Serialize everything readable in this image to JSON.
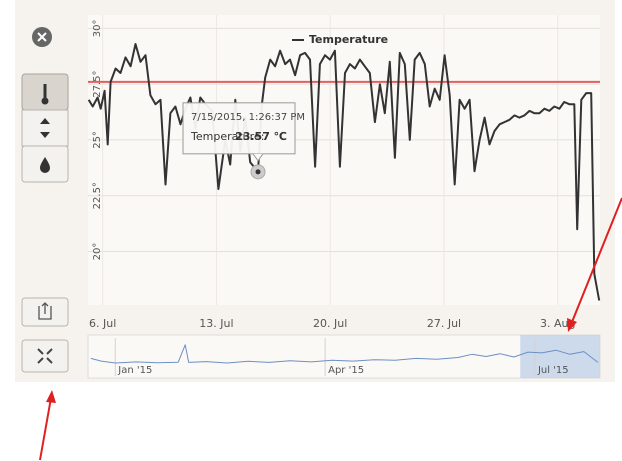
{
  "chart_data": [
    {
      "type": "line",
      "legend": true,
      "grid": true,
      "x": [
        5.14,
        5.39,
        5.69,
        5.88,
        6.12,
        6.31,
        6.49,
        6.8,
        7.1,
        7.41,
        7.72,
        8.02,
        8.33,
        8.64,
        8.94,
        9.25,
        9.56,
        9.87,
        10.17,
        10.48,
        10.79,
        11.09,
        11.4,
        11.71,
        12.01,
        12.32,
        12.75,
        13.12,
        13.55,
        13.85,
        14.16,
        14.47,
        14.77,
        15.08,
        15.56,
        15.8,
        16.0,
        16.31,
        16.61,
        16.92,
        17.23,
        17.53,
        17.84,
        18.15,
        18.45,
        18.76,
        19.07,
        19.37,
        19.68,
        19.99,
        20.29,
        20.6,
        20.91,
        21.21,
        21.52,
        21.83,
        22.13,
        22.44,
        22.75,
        23.06,
        23.36,
        23.67,
        23.98,
        24.28,
        24.59,
        24.9,
        25.2,
        25.51,
        25.82,
        26.12,
        26.43,
        26.74,
        27.04,
        27.35,
        27.66,
        27.96,
        28.27,
        28.58,
        28.88,
        29.19,
        29.5,
        29.8,
        30.11,
        30.42,
        30.72,
        31.03,
        31.34,
        31.64,
        31.95,
        32.26,
        32.56,
        32.87,
        33.18,
        33.48,
        33.79,
        34.1,
        34.4,
        34.71,
        35.02,
        35.2,
        35.45,
        35.75,
        36.06,
        36.25,
        36.55
      ],
      "series": [
        {
          "name": "Temperature",
          "color": "#333333",
          "values": [
            26.8,
            26.5,
            26.9,
            26.4,
            27.2,
            24.8,
            27.6,
            28.2,
            28.0,
            28.7,
            28.3,
            29.3,
            28.5,
            28.8,
            27.0,
            26.6,
            26.8,
            23.0,
            26.2,
            26.5,
            25.7,
            26.4,
            26.9,
            25.5,
            26.9,
            26.6,
            26.3,
            22.8,
            25.0,
            23.9,
            26.8,
            24.5,
            26.0,
            24.0,
            23.57,
            26.6,
            27.8,
            28.6,
            28.3,
            29.0,
            28.4,
            28.6,
            27.9,
            28.8,
            28.9,
            28.6,
            23.8,
            28.4,
            28.8,
            28.6,
            29.0,
            23.8,
            28.0,
            28.4,
            28.2,
            28.6,
            28.3,
            28.0,
            25.8,
            27.5,
            26.2,
            28.5,
            24.2,
            28.9,
            28.4,
            25.0,
            28.6,
            28.9,
            28.4,
            26.5,
            27.3,
            26.8,
            28.8,
            27.0,
            23.0,
            26.8,
            26.4,
            26.8,
            23.6,
            25.0,
            26.0,
            24.8,
            25.4,
            25.7,
            25.8,
            25.9,
            26.1,
            26.0,
            26.1,
            26.3,
            26.2,
            26.2,
            26.4,
            26.3,
            26.5,
            26.4,
            26.7,
            26.6,
            26.6,
            21.0,
            26.8,
            27.1,
            27.1,
            19.0,
            17.8
          ]
        }
      ],
      "xlim": [
        5.1,
        36.6
      ],
      "xticks": [
        {
          "value": 6,
          "label": "6. Jul"
        },
        {
          "value": 13,
          "label": "13. Jul"
        },
        {
          "value": 20,
          "label": "20. Jul"
        },
        {
          "value": 27,
          "label": "27. Jul"
        },
        {
          "value": 34,
          "label": "3. Aug"
        }
      ],
      "ylim": [
        17.6,
        30.6
      ],
      "yticks": [
        {
          "value": 20,
          "label": "20°"
        },
        {
          "value": 22.5,
          "label": "22.5°"
        },
        {
          "value": 25,
          "label": "25°"
        },
        {
          "value": 27.5,
          "label": "27.5°"
        },
        {
          "value": 30,
          "label": "30°"
        }
      ],
      "plot_lines": [
        {
          "value": 27.6,
          "color": "#e06060"
        }
      ],
      "tooltip": {
        "title": "7/15/2015, 1:26:37 PM",
        "label": "Temperature:",
        "x": 15.56,
        "value": 23.57,
        "value_label": "23.57 ℃"
      }
    },
    {
      "type": "line",
      "color": "#6d8fc4",
      "x": [
        0.65,
        0.8,
        1.0,
        1.3,
        1.6,
        1.9,
        2.0,
        2.05,
        2.3,
        2.6,
        2.9,
        3.2,
        3.5,
        3.8,
        4.1,
        4.4,
        4.7,
        5.0,
        5.3,
        5.6,
        5.9,
        6.1,
        6.3,
        6.5,
        6.7,
        6.9,
        7.1,
        7.3,
        7.5,
        7.7,
        7.9
      ],
      "values": [
        24.5,
        23.5,
        22.8,
        23.2,
        22.9,
        23.1,
        29.5,
        23.0,
        23.3,
        22.8,
        23.4,
        23.0,
        23.6,
        23.2,
        23.8,
        23.5,
        24.0,
        23.8,
        24.5,
        24.2,
        24.8,
        26.0,
        25.2,
        26.2,
        25.0,
        26.8,
        26.5,
        27.5,
        26.0,
        27.0,
        23.0
      ],
      "xlim": [
        0.61,
        7.93
      ],
      "xticks": [
        {
          "value": 1,
          "label": "Jan '15"
        },
        {
          "value": 4,
          "label": "Apr '15"
        },
        {
          "value": 7,
          "label": "Jul '15"
        }
      ],
      "ylim": [
        18,
        32
      ],
      "selection": [
        6.79,
        7.93
      ]
    }
  ]
}
